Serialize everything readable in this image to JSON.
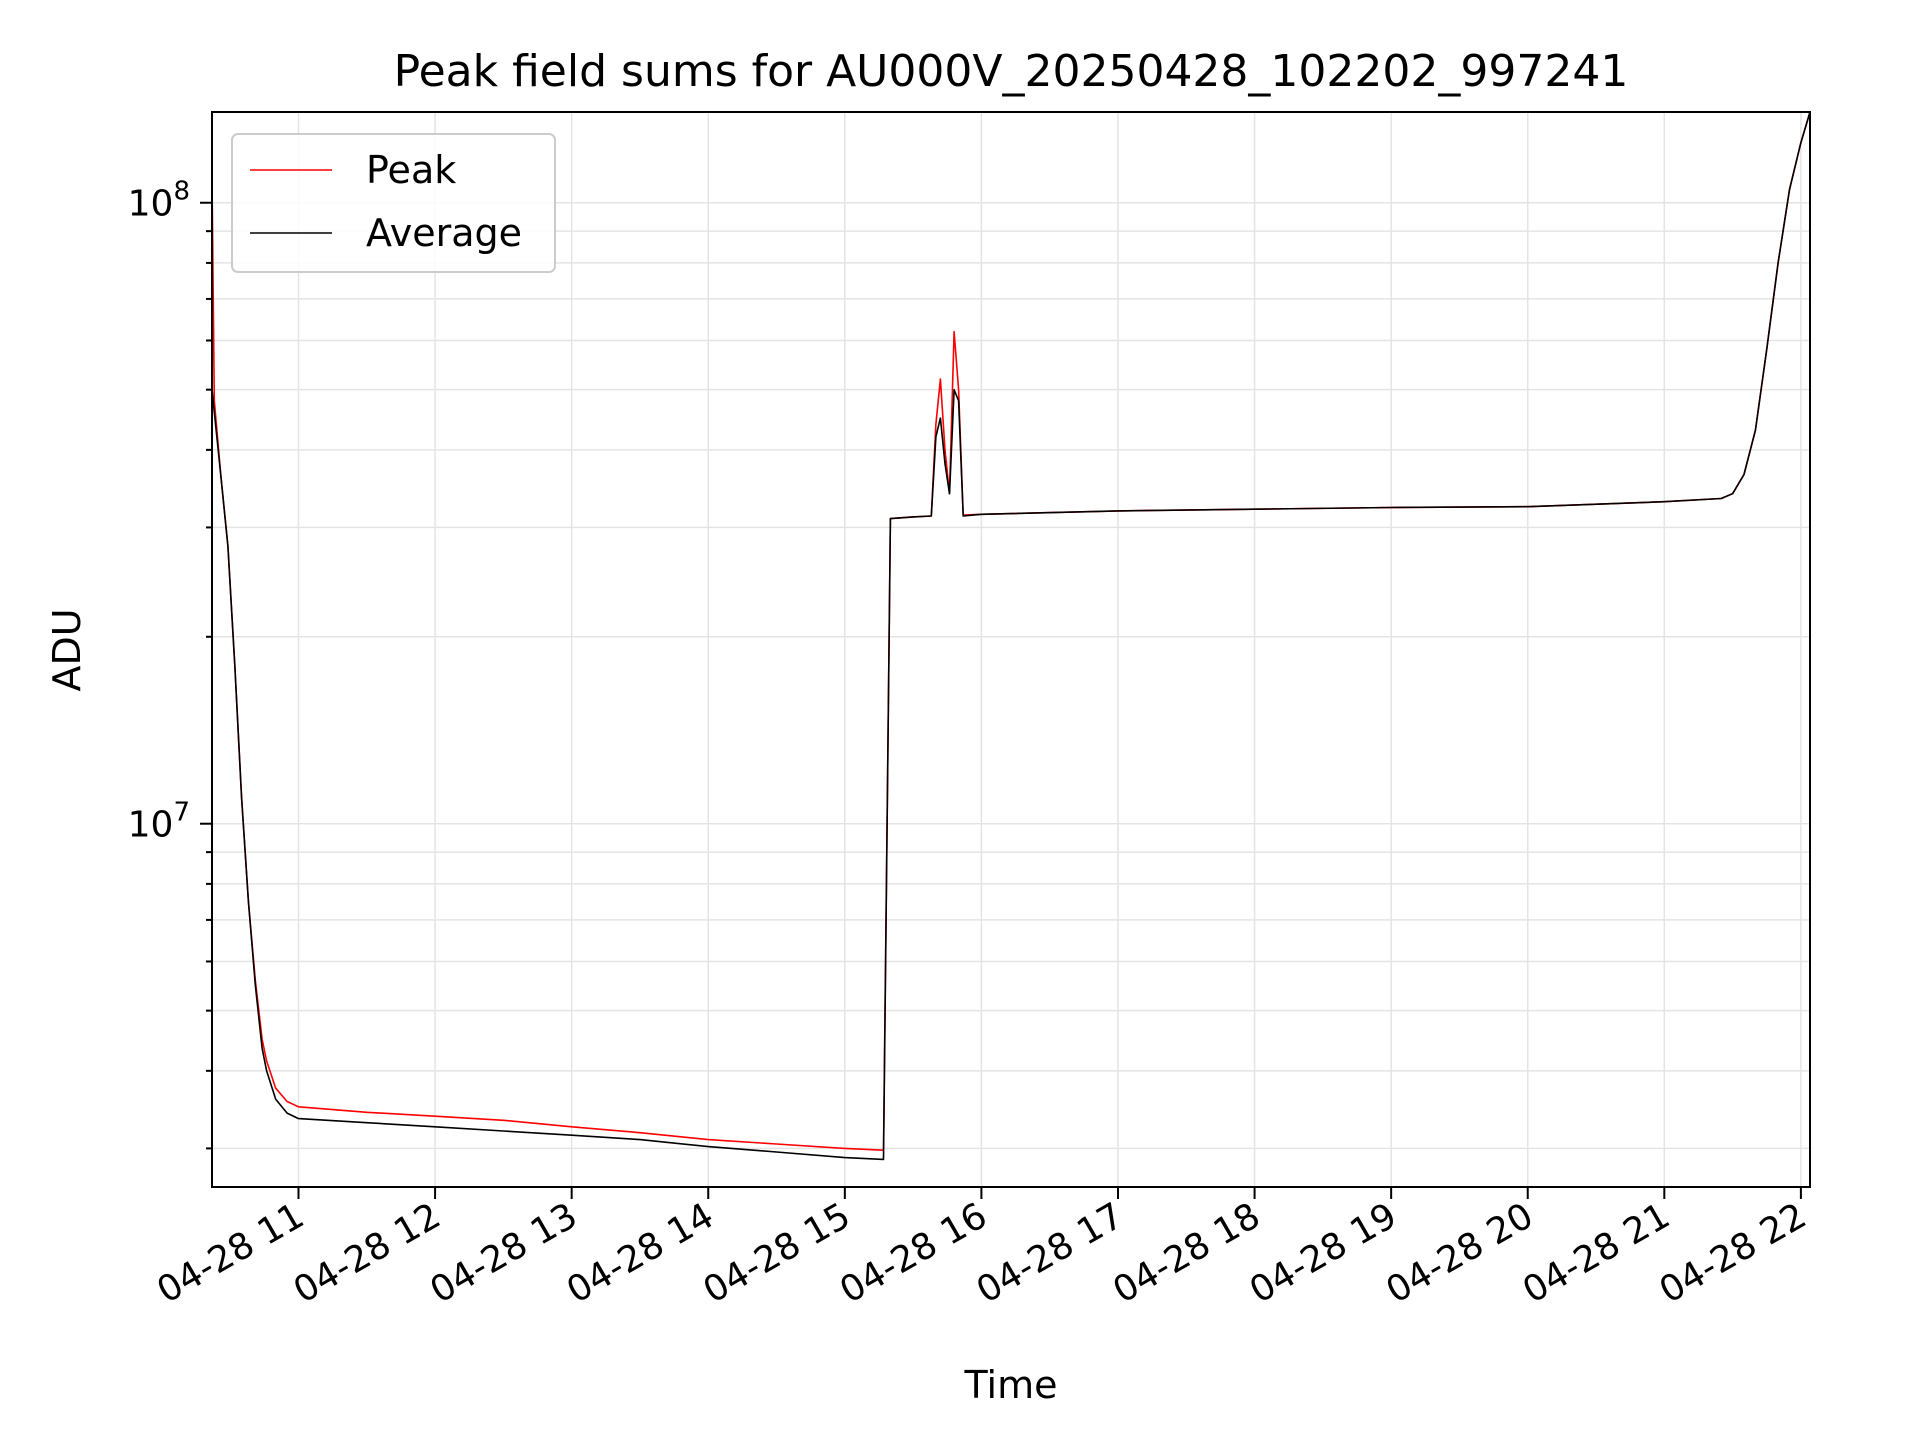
{
  "chart_data": {
    "type": "line",
    "title": "Peak field sums for AU000V_20250428_102202_997241",
    "xlabel": "Time",
    "ylabel": "ADU",
    "yscale": "log",
    "ylim": [
      2600000,
      140000000
    ],
    "xlim": [
      "04-28 10:22",
      "04-28 22:04"
    ],
    "grid": true,
    "legend_position": "top-left",
    "x_ticks": [
      "04-28 11",
      "04-28 12",
      "04-28 13",
      "04-28 14",
      "04-28 15",
      "04-28 16",
      "04-28 17",
      "04-28 18",
      "04-28 19",
      "04-28 20",
      "04-28 21",
      "04-28 22"
    ],
    "y_tick_labels": [
      {
        "base": "10",
        "exp": "7",
        "value": 10000000
      },
      {
        "base": "10",
        "exp": "8",
        "value": 100000000
      }
    ],
    "series": [
      {
        "name": "Peak",
        "color": "#ff0000",
        "points": [
          [
            "04-28 10:22",
            110000000
          ],
          [
            "04-28 10:23",
            48000000
          ],
          [
            "04-28 10:26",
            36000000
          ],
          [
            "04-28 10:29",
            28000000
          ],
          [
            "04-28 10:32",
            18000000
          ],
          [
            "04-28 10:35",
            11000000
          ],
          [
            "04-28 10:38",
            7500000
          ],
          [
            "04-28 10:41",
            5600000
          ],
          [
            "04-28 10:44",
            4500000
          ],
          [
            "04-28 10:46",
            4150000
          ],
          [
            "04-28 10:50",
            3750000
          ],
          [
            "04-28 10:55",
            3570000
          ],
          [
            "04-28 11:00",
            3500000
          ],
          [
            "04-28 11:30",
            3430000
          ],
          [
            "04-28 12:00",
            3380000
          ],
          [
            "04-28 12:30",
            3330000
          ],
          [
            "04-28 13:00",
            3250000
          ],
          [
            "04-28 13:30",
            3180000
          ],
          [
            "04-28 14:00",
            3100000
          ],
          [
            "04-28 14:30",
            3050000
          ],
          [
            "04-28 15:00",
            3000000
          ],
          [
            "04-28 15:17",
            2980000
          ],
          [
            "04-28 15:20",
            31000000
          ],
          [
            "04-28 15:30",
            31200000
          ],
          [
            "04-28 15:38",
            31300000
          ],
          [
            "04-28 15:40",
            44000000
          ],
          [
            "04-28 15:42",
            52000000
          ],
          [
            "04-28 15:44",
            40000000
          ],
          [
            "04-28 15:46",
            34000000
          ],
          [
            "04-28 15:48",
            62000000
          ],
          [
            "04-28 15:50",
            50000000
          ],
          [
            "04-28 15:52",
            31400000
          ],
          [
            "04-28 16:00",
            31500000
          ],
          [
            "04-28 17:00",
            31900000
          ],
          [
            "04-28 18:00",
            32100000
          ],
          [
            "04-28 19:00",
            32300000
          ],
          [
            "04-28 20:00",
            32400000
          ],
          [
            "04-28 21:00",
            33000000
          ],
          [
            "04-28 21:25",
            33400000
          ],
          [
            "04-28 21:30",
            34000000
          ],
          [
            "04-28 21:35",
            36500000
          ],
          [
            "04-28 21:40",
            43000000
          ],
          [
            "04-28 21:45",
            58000000
          ],
          [
            "04-28 21:50",
            80000000
          ],
          [
            "04-28 21:55",
            105000000
          ],
          [
            "04-28 22:00",
            125000000
          ],
          [
            "04-28 22:04",
            140000000
          ]
        ]
      },
      {
        "name": "Average",
        "color": "#000000",
        "points": [
          [
            "04-28 10:22",
            50000000
          ],
          [
            "04-28 10:23",
            46000000
          ],
          [
            "04-28 10:26",
            36000000
          ],
          [
            "04-28 10:29",
            28000000
          ],
          [
            "04-28 10:32",
            18000000
          ],
          [
            "04-28 10:35",
            11000000
          ],
          [
            "04-28 10:38",
            7500000
          ],
          [
            "04-28 10:41",
            5500000
          ],
          [
            "04-28 10:44",
            4350000
          ],
          [
            "04-28 10:46",
            4000000
          ],
          [
            "04-28 10:50",
            3600000
          ],
          [
            "04-28 10:55",
            3420000
          ],
          [
            "04-28 11:00",
            3350000
          ],
          [
            "04-28 11:30",
            3300000
          ],
          [
            "04-28 12:00",
            3250000
          ],
          [
            "04-28 12:30",
            3200000
          ],
          [
            "04-28 13:00",
            3150000
          ],
          [
            "04-28 13:30",
            3100000
          ],
          [
            "04-28 14:00",
            3020000
          ],
          [
            "04-28 14:30",
            2960000
          ],
          [
            "04-28 15:00",
            2900000
          ],
          [
            "04-28 15:17",
            2880000
          ],
          [
            "04-28 15:20",
            31000000
          ],
          [
            "04-28 15:30",
            31200000
          ],
          [
            "04-28 15:38",
            31300000
          ],
          [
            "04-28 15:40",
            42000000
          ],
          [
            "04-28 15:42",
            45000000
          ],
          [
            "04-28 15:44",
            38000000
          ],
          [
            "04-28 15:46",
            34000000
          ],
          [
            "04-28 15:48",
            50000000
          ],
          [
            "04-28 15:50",
            48000000
          ],
          [
            "04-28 15:52",
            31300000
          ],
          [
            "04-28 16:00",
            31500000
          ],
          [
            "04-28 17:00",
            31900000
          ],
          [
            "04-28 18:00",
            32100000
          ],
          [
            "04-28 19:00",
            32300000
          ],
          [
            "04-28 20:00",
            32400000
          ],
          [
            "04-28 21:00",
            33000000
          ],
          [
            "04-28 21:25",
            33400000
          ],
          [
            "04-28 21:30",
            34000000
          ],
          [
            "04-28 21:35",
            36500000
          ],
          [
            "04-28 21:40",
            43000000
          ],
          [
            "04-28 21:45",
            58000000
          ],
          [
            "04-28 21:50",
            80000000
          ],
          [
            "04-28 21:55",
            105000000
          ],
          [
            "04-28 22:00",
            125000000
          ],
          [
            "04-28 22:04",
            140000000
          ]
        ]
      }
    ]
  }
}
